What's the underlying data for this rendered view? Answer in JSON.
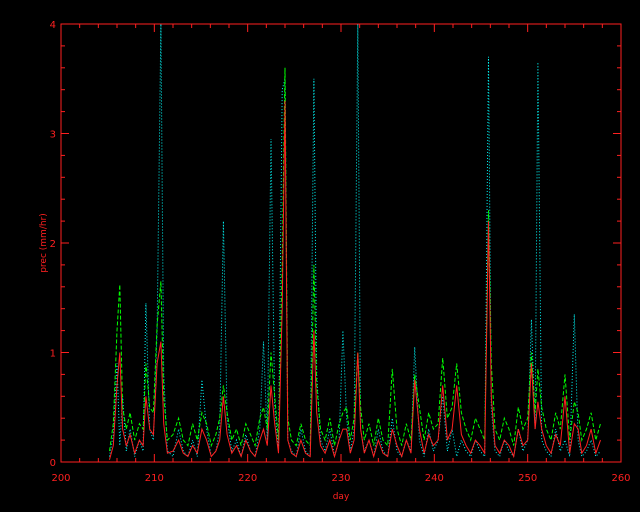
{
  "chart_data": {
    "type": "line",
    "title": "",
    "xlabel": "day",
    "ylabel": "prec (mm/hr)",
    "xlim": [
      200,
      260
    ],
    "ylim": [
      0,
      4
    ],
    "grid": false,
    "legend": "none",
    "colors": {
      "axes": "#ff2020",
      "background": "#000000"
    },
    "x_ticks": [
      200,
      210,
      220,
      230,
      240,
      250,
      260
    ],
    "y_ticks": [
      0,
      1,
      2,
      3,
      4
    ],
    "x_tick_labels": [
      "200",
      "210",
      "220",
      "230",
      "240",
      "250",
      "260"
    ],
    "y_tick_labels": [
      "0",
      "1",
      "2",
      "3",
      "4"
    ],
    "series": [
      {
        "color": "#00ffff",
        "style": "dotted",
        "x": [
          205.2,
          205.6,
          206.0,
          206.3,
          206.6,
          207.0,
          207.4,
          207.9,
          208.4,
          208.8,
          209.1,
          209.5,
          209.9,
          210.3,
          210.7,
          211.0,
          211.4,
          212.0,
          212.6,
          213.1,
          213.6,
          214.1,
          214.6,
          215.1,
          215.6,
          216.1,
          216.6,
          217.0,
          217.4,
          217.8,
          218.3,
          218.8,
          219.3,
          219.8,
          220.3,
          220.8,
          221.3,
          221.7,
          222.1,
          222.5,
          222.9,
          223.3,
          223.7,
          224.0,
          224.3,
          224.7,
          225.2,
          225.7,
          226.2,
          226.7,
          227.1,
          227.4,
          227.8,
          228.3,
          228.8,
          229.3,
          229.8,
          230.2,
          230.6,
          231.0,
          231.4,
          231.8,
          232.1,
          232.5,
          233.0,
          233.5,
          234.0,
          234.5,
          235.0,
          235.5,
          236.0,
          236.5,
          237.0,
          237.5,
          237.9,
          238.4,
          238.9,
          239.4,
          239.9,
          240.4,
          240.9,
          241.4,
          241.9,
          242.4,
          242.9,
          243.4,
          243.9,
          244.4,
          244.9,
          245.4,
          245.8,
          246.1,
          246.5,
          247.0,
          247.5,
          248.0,
          248.5,
          249.0,
          249.5,
          250.0,
          250.4,
          250.8,
          251.1,
          251.5,
          252.0,
          252.5,
          253.0,
          253.5,
          254.0,
          254.5,
          255.0,
          255.4,
          255.8,
          256.3,
          256.8,
          257.3,
          257.8
        ],
        "y": [
          0.05,
          0.25,
          0.9,
          0.15,
          0.6,
          0.1,
          0.3,
          0.05,
          0.2,
          0.1,
          1.45,
          0.3,
          0.2,
          1.2,
          4.0,
          0.8,
          0.1,
          0.05,
          0.3,
          0.1,
          0.05,
          0.2,
          0.05,
          0.75,
          0.3,
          0.05,
          0.1,
          0.3,
          2.2,
          0.4,
          0.1,
          0.2,
          0.05,
          0.25,
          0.1,
          0.05,
          0.3,
          1.1,
          0.2,
          2.95,
          0.5,
          0.1,
          3.4,
          3.5,
          0.2,
          0.1,
          0.05,
          0.3,
          0.1,
          0.05,
          3.5,
          0.8,
          0.2,
          0.1,
          0.3,
          0.05,
          0.2,
          1.2,
          0.4,
          0.1,
          0.3,
          4.0,
          0.3,
          0.1,
          0.2,
          0.05,
          0.3,
          0.1,
          0.05,
          0.4,
          0.1,
          0.05,
          0.2,
          0.1,
          1.05,
          0.2,
          0.05,
          0.3,
          0.1,
          0.2,
          0.6,
          0.1,
          0.3,
          0.05,
          0.2,
          0.1,
          0.05,
          0.2,
          0.1,
          0.05,
          3.7,
          0.5,
          0.1,
          0.05,
          0.2,
          0.1,
          0.05,
          0.3,
          0.1,
          0.2,
          1.3,
          0.3,
          3.65,
          0.2,
          0.1,
          0.05,
          0.3,
          0.1,
          0.2,
          0.05,
          1.35,
          0.2,
          0.05,
          0.1,
          0.2,
          0.05,
          0.1
        ]
      },
      {
        "color": "#00ff00",
        "style": "dashed",
        "x": [
          205.2,
          205.6,
          206.0,
          206.3,
          206.6,
          207.0,
          207.4,
          207.9,
          208.4,
          208.8,
          209.1,
          209.5,
          209.9,
          210.3,
          210.7,
          211.0,
          211.4,
          212.0,
          212.6,
          213.1,
          213.6,
          214.1,
          214.6,
          215.1,
          215.6,
          216.1,
          216.6,
          217.0,
          217.4,
          217.8,
          218.3,
          218.8,
          219.3,
          219.8,
          220.3,
          220.8,
          221.3,
          221.7,
          222.1,
          222.5,
          222.9,
          223.3,
          223.7,
          224.0,
          224.3,
          224.7,
          225.2,
          225.7,
          226.2,
          226.7,
          227.1,
          227.4,
          227.8,
          228.3,
          228.8,
          229.3,
          229.8,
          230.2,
          230.6,
          231.0,
          231.4,
          231.8,
          232.1,
          232.5,
          233.0,
          233.5,
          234.0,
          234.5,
          235.0,
          235.5,
          236.0,
          236.5,
          237.0,
          237.5,
          237.9,
          238.4,
          238.9,
          239.4,
          239.9,
          240.4,
          240.9,
          241.4,
          241.9,
          242.4,
          242.9,
          243.4,
          243.9,
          244.4,
          244.9,
          245.4,
          245.8,
          246.1,
          246.5,
          247.0,
          247.5,
          248.0,
          248.5,
          249.0,
          249.5,
          250.0,
          250.4,
          250.8,
          251.1,
          251.5,
          252.0,
          252.5,
          253.0,
          253.5,
          254.0,
          254.5,
          255.0,
          255.4,
          255.8,
          256.3,
          256.8,
          257.3,
          257.8
        ],
        "y": [
          0.1,
          0.35,
          1.2,
          1.62,
          0.5,
          0.3,
          0.45,
          0.2,
          0.35,
          0.3,
          0.9,
          0.5,
          0.45,
          1.25,
          1.65,
          0.6,
          0.2,
          0.25,
          0.4,
          0.2,
          0.15,
          0.35,
          0.2,
          0.45,
          0.35,
          0.15,
          0.25,
          0.4,
          0.7,
          0.45,
          0.2,
          0.3,
          0.15,
          0.35,
          0.25,
          0.15,
          0.4,
          0.5,
          0.3,
          1.0,
          0.6,
          0.2,
          1.8,
          3.6,
          0.4,
          0.2,
          0.15,
          0.35,
          0.2,
          0.15,
          1.8,
          0.7,
          0.3,
          0.2,
          0.4,
          0.15,
          0.35,
          0.45,
          0.5,
          0.2,
          0.4,
          1.0,
          0.5,
          0.2,
          0.35,
          0.15,
          0.4,
          0.2,
          0.15,
          0.85,
          0.3,
          0.15,
          0.35,
          0.2,
          0.8,
          0.5,
          0.2,
          0.45,
          0.3,
          0.35,
          0.95,
          0.4,
          0.5,
          0.9,
          0.45,
          0.3,
          0.2,
          0.4,
          0.3,
          0.2,
          2.3,
          0.9,
          0.3,
          0.2,
          0.4,
          0.3,
          0.15,
          0.5,
          0.3,
          0.4,
          1.0,
          0.45,
          0.85,
          0.5,
          0.3,
          0.2,
          0.45,
          0.3,
          0.8,
          0.2,
          0.55,
          0.45,
          0.2,
          0.3,
          0.45,
          0.2,
          0.35
        ]
      },
      {
        "color": "#ff2020",
        "style": "solid",
        "x": [
          205.2,
          205.6,
          206.0,
          206.3,
          206.6,
          207.0,
          207.4,
          207.9,
          208.4,
          208.8,
          209.1,
          209.5,
          209.9,
          210.3,
          210.7,
          211.0,
          211.4,
          212.0,
          212.6,
          213.1,
          213.6,
          214.1,
          214.6,
          215.1,
          215.6,
          216.1,
          216.6,
          217.0,
          217.4,
          217.8,
          218.3,
          218.8,
          219.3,
          219.8,
          220.3,
          220.8,
          221.3,
          221.7,
          222.1,
          222.5,
          222.9,
          223.3,
          223.7,
          224.0,
          224.3,
          224.7,
          225.2,
          225.7,
          226.2,
          226.7,
          227.1,
          227.4,
          227.8,
          228.3,
          228.8,
          229.3,
          229.8,
          230.2,
          230.6,
          231.0,
          231.4,
          231.8,
          232.1,
          232.5,
          233.0,
          233.5,
          234.0,
          234.5,
          235.0,
          235.5,
          236.0,
          236.5,
          237.0,
          237.5,
          237.9,
          238.4,
          238.9,
          239.4,
          239.9,
          240.4,
          240.9,
          241.4,
          241.9,
          242.4,
          242.9,
          243.4,
          243.9,
          244.4,
          244.9,
          245.4,
          245.8,
          246.1,
          246.5,
          247.0,
          247.5,
          248.0,
          248.5,
          249.0,
          249.5,
          250.0,
          250.4,
          250.8,
          251.1,
          251.5,
          252.0,
          252.5,
          253.0,
          253.5,
          254.0,
          254.5,
          255.0,
          255.4,
          255.8,
          256.3,
          256.8,
          257.3,
          257.8
        ],
        "y": [
          0.02,
          0.15,
          0.7,
          1.0,
          0.3,
          0.15,
          0.25,
          0.08,
          0.2,
          0.15,
          0.6,
          0.3,
          0.25,
          0.9,
          1.1,
          0.35,
          0.08,
          0.1,
          0.2,
          0.08,
          0.05,
          0.15,
          0.08,
          0.3,
          0.2,
          0.05,
          0.1,
          0.2,
          0.6,
          0.25,
          0.08,
          0.15,
          0.05,
          0.2,
          0.1,
          0.05,
          0.2,
          0.3,
          0.15,
          0.7,
          0.35,
          0.08,
          1.4,
          3.3,
          0.2,
          0.08,
          0.05,
          0.2,
          0.08,
          0.05,
          1.2,
          0.45,
          0.15,
          0.08,
          0.2,
          0.05,
          0.2,
          0.3,
          0.3,
          0.08,
          0.2,
          1.0,
          0.3,
          0.08,
          0.2,
          0.05,
          0.2,
          0.08,
          0.05,
          0.3,
          0.15,
          0.05,
          0.2,
          0.08,
          0.75,
          0.3,
          0.08,
          0.25,
          0.15,
          0.2,
          0.7,
          0.2,
          0.3,
          0.7,
          0.25,
          0.15,
          0.08,
          0.2,
          0.15,
          0.08,
          2.2,
          0.6,
          0.15,
          0.08,
          0.2,
          0.15,
          0.05,
          0.3,
          0.15,
          0.2,
          0.9,
          0.3,
          0.55,
          0.3,
          0.15,
          0.08,
          0.25,
          0.15,
          0.6,
          0.08,
          0.35,
          0.3,
          0.08,
          0.15,
          0.3,
          0.08,
          0.2
        ]
      }
    ]
  }
}
